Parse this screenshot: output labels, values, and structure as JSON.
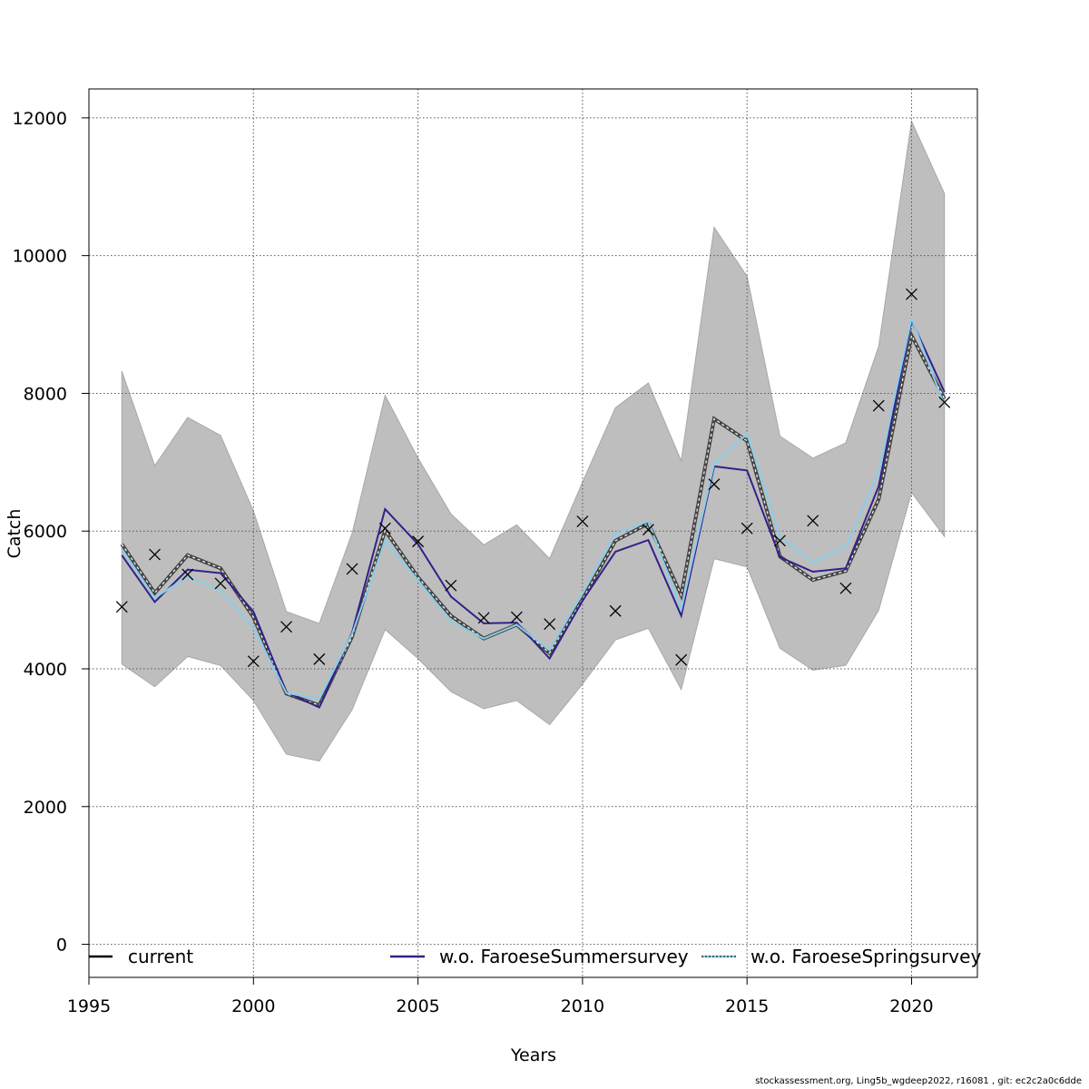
{
  "chart_data": {
    "type": "line",
    "xlabel": "Years",
    "ylabel": "Catch",
    "xlim": [
      1995,
      2022
    ],
    "ylim": [
      -480,
      12420
    ],
    "x_ticks": [
      1995,
      2000,
      2005,
      2010,
      2015,
      2020
    ],
    "y_ticks": [
      0,
      2000,
      4000,
      6000,
      8000,
      10000,
      12000
    ],
    "grid": true,
    "x": [
      1996,
      1997,
      1998,
      1999,
      2000,
      2001,
      2002,
      2003,
      2004,
      2005,
      2006,
      2007,
      2008,
      2009,
      2010,
      2011,
      2012,
      2013,
      2014,
      2015,
      2016,
      2017,
      2018,
      2019,
      2020,
      2021
    ],
    "confidence_band": {
      "color": "#bebebe",
      "lower": [
        4070,
        3740,
        4180,
        4050,
        3540,
        2760,
        2660,
        3410,
        4570,
        4150,
        3670,
        3420,
        3540,
        3190,
        3780,
        4420,
        4590,
        3700,
        5600,
        5480,
        4300,
        3980,
        4050,
        4850,
        6560,
        5920
      ],
      "upper": [
        8320,
        6950,
        7650,
        7390,
        6290,
        4830,
        4660,
        5970,
        7970,
        7060,
        6250,
        5800,
        6090,
        5600,
        6710,
        7790,
        8150,
        7020,
        10410,
        9700,
        7380,
        7060,
        7280,
        8680,
        11950,
        10900
      ]
    },
    "series": [
      {
        "name": "current",
        "color": "#000000",
        "style": "dashed-halo",
        "values": [
          5810,
          5100,
          5650,
          5460,
          4750,
          3640,
          3470,
          4470,
          6010,
          5330,
          4770,
          4440,
          4640,
          4230,
          5010,
          5860,
          6110,
          5070,
          7630,
          7310,
          5630,
          5290,
          5420,
          6460,
          8840,
          7920
        ]
      },
      {
        "name": "w.o. FaroeseSummersurvey",
        "color": "#32208a",
        "style": "solid",
        "values": [
          5650,
          4970,
          5440,
          5390,
          4830,
          3660,
          3440,
          4530,
          6320,
          5810,
          5050,
          4660,
          4670,
          4150,
          4990,
          5700,
          5870,
          4770,
          6940,
          6880,
          5620,
          5410,
          5460,
          6650,
          9060,
          8020
        ]
      },
      {
        "name": "w.o. FaroeseSpringsurvey",
        "color": "#87ceeb",
        "style": "solid",
        "values": [
          5740,
          5030,
          5340,
          5140,
          4590,
          3650,
          3560,
          4510,
          5860,
          5290,
          4690,
          4440,
          4640,
          4270,
          5100,
          5960,
          6140,
          4860,
          6980,
          7410,
          5920,
          5550,
          5770,
          6860,
          9090,
          7820
        ]
      }
    ],
    "observations": {
      "marker": "x",
      "values": [
        4900,
        5660,
        5370,
        5240,
        4110,
        4610,
        4140,
        5450,
        6040,
        5850,
        5210,
        4740,
        4750,
        4650,
        6140,
        4840,
        6020,
        4130,
        6680,
        6040,
        5860,
        6150,
        5170,
        7820,
        9440,
        7870
      ]
    },
    "legend": {
      "placement": "bottom",
      "entries": [
        "current",
        "w.o. FaroeseSummersurvey",
        "w.o. FaroeseSpringsurvey"
      ]
    }
  },
  "footer": "stockassessment.org, Ling5b_wgdeep2022, r16081 , git: ec2c2a0c6dde"
}
